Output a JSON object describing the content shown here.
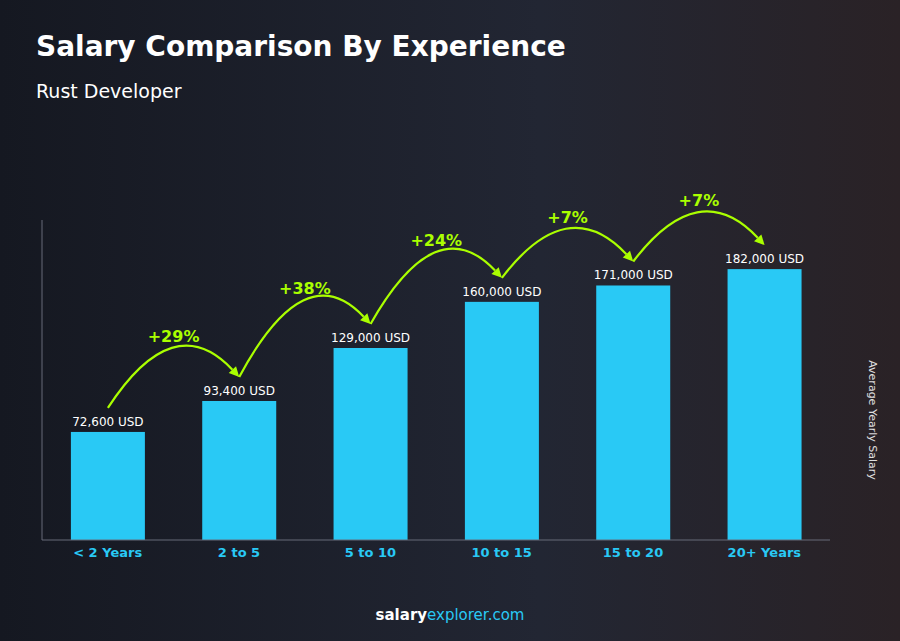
{
  "chart_data": {
    "type": "bar",
    "title": "Salary Comparison By Experience",
    "subtitle": "Rust Developer",
    "categories": [
      "< 2 Years",
      "2 to 5",
      "5 to 10",
      "10 to 15",
      "15 to 20",
      "20+ Years"
    ],
    "values": [
      72600,
      93400,
      129000,
      160000,
      171000,
      182000
    ],
    "value_labels": [
      "72,600 USD",
      "93,400 USD",
      "129,000 USD",
      "160,000 USD",
      "171,000 USD",
      "182,000 USD"
    ],
    "data_labels": true,
    "color": "#29c9f5",
    "ylim": [
      0,
      215000
    ],
    "tick_labels": "x",
    "ylabel": "Average Yearly Salary",
    "annotations": [
      {
        "text": "+29%",
        "from": "< 2 Years",
        "to": "2 to 5",
        "color": "#aaff00"
      },
      {
        "text": "+38%",
        "from": "2 to 5",
        "to": "5 to 10",
        "color": "#aaff00"
      },
      {
        "text": "+24%",
        "from": "5 to 10",
        "to": "10 to 15",
        "color": "#aaff00"
      },
      {
        "text": "+7%",
        "from": "10 to 15",
        "to": "15 to 20",
        "color": "#aaff00"
      },
      {
        "text": "+7%",
        "from": "15 to 20",
        "to": "20+ Years",
        "color": "#aaff00"
      }
    ],
    "footer": [
      "salary",
      "explorer.com"
    ]
  }
}
